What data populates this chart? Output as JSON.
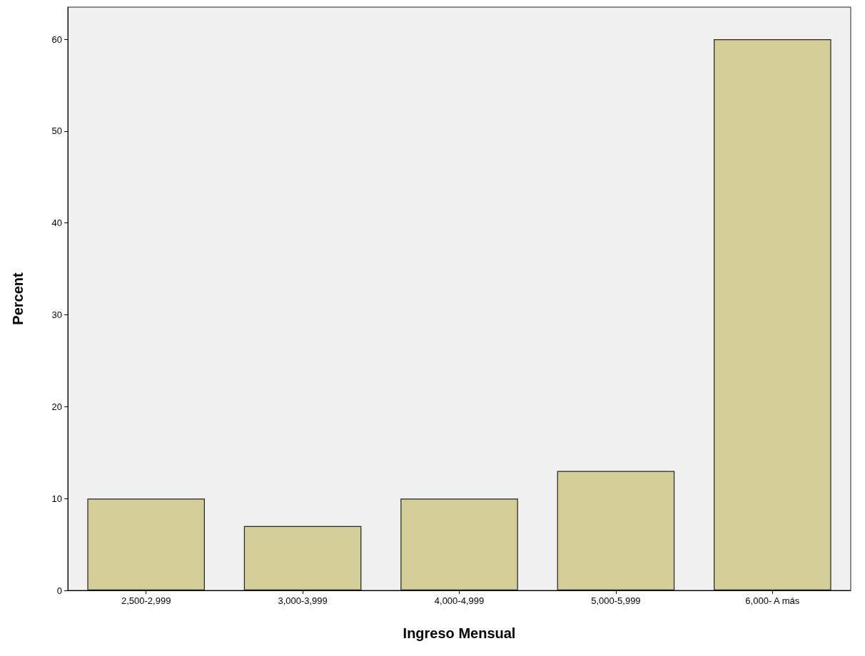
{
  "chart_data": {
    "type": "bar",
    "xlabel": "Ingreso Mensual",
    "ylabel": "Percent",
    "categories": [
      "2,500-2,999",
      "3,000-3,999",
      "4,000-4,999",
      "5,000-5,999",
      "6,000- A más"
    ],
    "values": [
      10,
      7,
      10,
      13,
      60
    ],
    "color": "#d3ce97",
    "ylim": [
      0,
      63.5
    ],
    "yticks": [
      0,
      10,
      20,
      30,
      40,
      50,
      60
    ],
    "grid": false
  }
}
